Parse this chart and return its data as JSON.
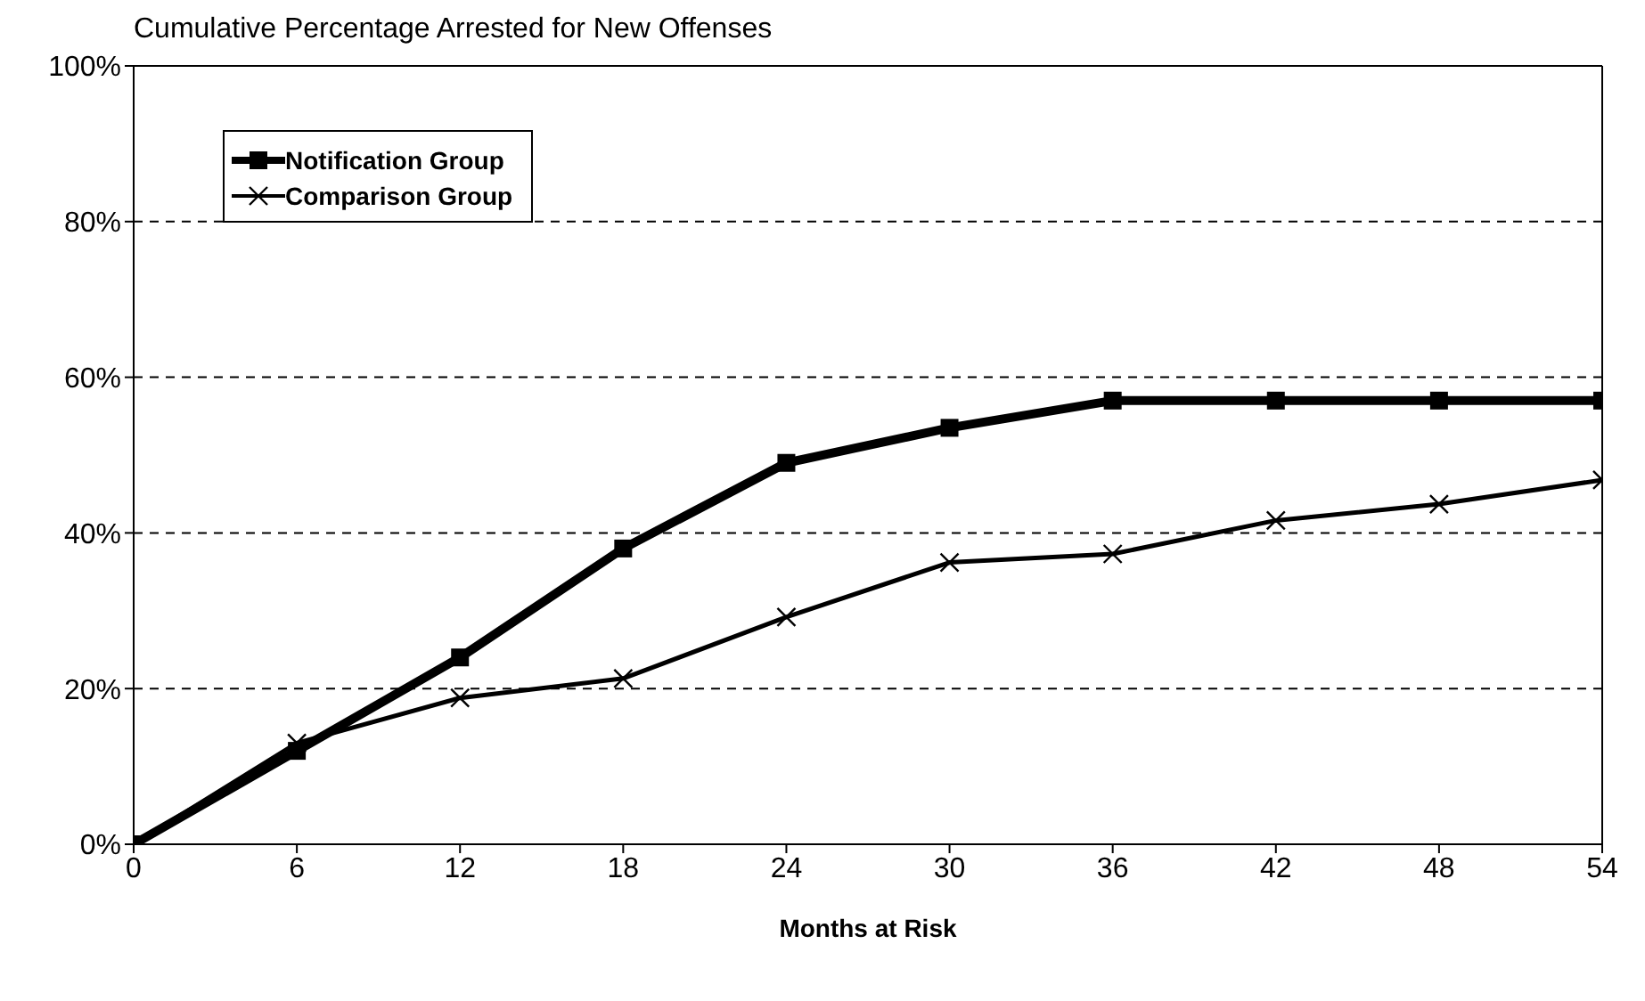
{
  "chart_data": {
    "type": "line",
    "title": "Cumulative Percentage Arrested for New Offenses",
    "xlabel": "Months at Risk",
    "x": [
      0,
      6,
      12,
      18,
      24,
      30,
      36,
      42,
      48,
      54
    ],
    "series": [
      {
        "name": "Notification Group",
        "color": "#000000",
        "marker": "square",
        "values": [
          0,
          12,
          24,
          38,
          49,
          53.5,
          57,
          57,
          57,
          57
        ]
      },
      {
        "name": "Comparison Group",
        "color": "#000000",
        "marker": "cross",
        "values": [
          0,
          13,
          18.8,
          21.3,
          29.2,
          36.2,
          37.3,
          41.6,
          43.7,
          46.8
        ]
      }
    ],
    "xlim": [
      0,
      54
    ],
    "xticks": [
      0,
      6,
      12,
      18,
      24,
      30,
      36,
      42,
      48,
      54
    ],
    "ylim": [
      0,
      100
    ],
    "yticks": [
      {
        "value": 0,
        "label": "0%"
      },
      {
        "value": 20,
        "label": "20%"
      },
      {
        "value": 40,
        "label": "40%"
      },
      {
        "value": 60,
        "label": "60%"
      },
      {
        "value": 80,
        "label": "80%"
      },
      {
        "value": 100,
        "label": "100%"
      }
    ],
    "grid": "y",
    "legend": "top left",
    "line_style": "solid"
  }
}
